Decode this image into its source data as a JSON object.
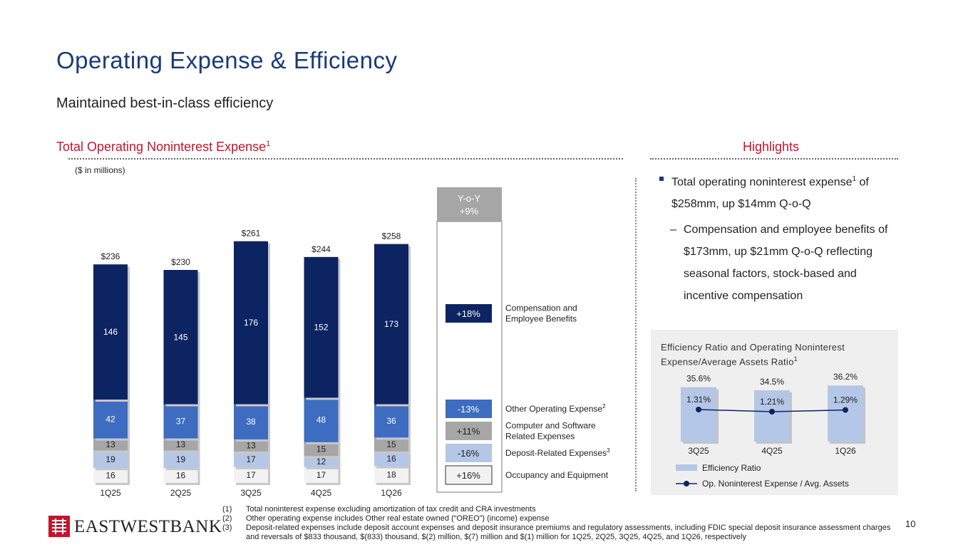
{
  "title": "Operating Expense & Efficiency",
  "subtitle": "Maintained best-in-class efficiency",
  "left_section": {
    "heading": "Total Operating Noninterest Expense",
    "heading_sup": "1",
    "units": "($ in millions)"
  },
  "right_section": {
    "heading": "Highlights"
  },
  "yoy": {
    "header_line1": "Y-o-Y",
    "header_line2": "+9%"
  },
  "legend_rows": [
    {
      "change": "+18%",
      "label_lines": [
        "Compensation and",
        "Employee Benefits"
      ],
      "sup": "",
      "color": "#0c2461",
      "text_color": "#ffffff"
    },
    {
      "change": "-13%",
      "label_lines": [
        "Other Operating Expense"
      ],
      "sup": "2",
      "color": "#3d6cc0",
      "text_color": "#ffffff"
    },
    {
      "change": "+11%",
      "label_lines": [
        "Computer and Software",
        "Related Expenses"
      ],
      "sup": "",
      "color": "#a6a6a6",
      "text_color": "#222222"
    },
    {
      "change": "-16%",
      "label_lines": [
        "Deposit-Related Expenses"
      ],
      "sup": "3",
      "color": "#b4c7e7",
      "text_color": "#222222"
    },
    {
      "change": "+16%",
      "label_lines": [
        "Occupancy and Equipment"
      ],
      "sup": "",
      "color": "#f2f2f2",
      "text_color": "#222222"
    }
  ],
  "chart_data": [
    {
      "type": "bar",
      "stacked": true,
      "categories": [
        "1Q25",
        "2Q25",
        "3Q25",
        "4Q25",
        "1Q26"
      ],
      "series": [
        {
          "name": "Occupancy and Equipment",
          "values": [
            16,
            16,
            17,
            17,
            18
          ],
          "color": "#f2f2f2"
        },
        {
          "name": "Deposit-Related Expenses",
          "values": [
            19,
            19,
            17,
            12,
            16
          ],
          "color": "#b4c7e7"
        },
        {
          "name": "Computer and Software Related Expenses",
          "values": [
            13,
            13,
            13,
            15,
            15
          ],
          "color": "#a6a6a6"
        },
        {
          "name": "Other Operating Expense",
          "values": [
            42,
            37,
            38,
            48,
            36
          ],
          "color": "#3d6cc0"
        },
        {
          "name": "Compensation and Employee Benefits",
          "values": [
            146,
            145,
            176,
            152,
            173
          ],
          "color": "#0c2461"
        }
      ],
      "totals": [
        "$236",
        "$230",
        "$261",
        "$244",
        "$258"
      ],
      "ylabel": "($ in millions)",
      "ylim": [
        0,
        270
      ],
      "grid": false
    },
    {
      "type": "bar",
      "title": "Efficiency Ratio and Operating Noninterest Expense/Average Assets Ratio",
      "title_sup": "1",
      "categories": [
        "3Q25",
        "4Q25",
        "1Q26"
      ],
      "series": [
        {
          "name": "Efficiency Ratio",
          "values": [
            35.6,
            34.5,
            36.2
          ],
          "labels": [
            "35.6%",
            "34.5%",
            "36.2%"
          ],
          "color": "#b4c7e7"
        },
        {
          "name": "Op. Noninterest Expense / Avg. Assets",
          "type": "line",
          "values": [
            1.31,
            1.21,
            1.29
          ],
          "labels": [
            "1.31%",
            "1.21%",
            "1.29%"
          ],
          "color": "#0c2461"
        }
      ],
      "legend": "bottom",
      "grid": false
    }
  ],
  "highlights": {
    "bullet": {
      "text_a": "Total operating noninterest expense",
      "sup": "1",
      "text_b": " of $258mm, up $14mm Q-o-Q"
    },
    "sub_bullet": "Compensation and employee benefits of $173mm, up $21mm Q-o-Q reflecting seasonal factors, stock-based and incentive compensation"
  },
  "footnotes": [
    {
      "num": "(1)",
      "text": "Total noninterest expense excluding amortization of tax credit and CRA investments"
    },
    {
      "num": "(2)",
      "text": "Other operating expense includes Other real estate owned (“OREO”) (income) expense"
    },
    {
      "num": "(3)",
      "text": "Deposit-related expenses include deposit account expenses and deposit insurance premiums and regulatory assessments, including FDIC special deposit insurance assessment charges and reversals of $833 thousand, $(833) thousand, $(2) million, $(7) million and $(1) million for 1Q25, 2Q25, 3Q25, 4Q25, and 1Q26, respectively"
    }
  ],
  "logo": {
    "text": "EASTWESTBANK"
  },
  "page_number": "10"
}
